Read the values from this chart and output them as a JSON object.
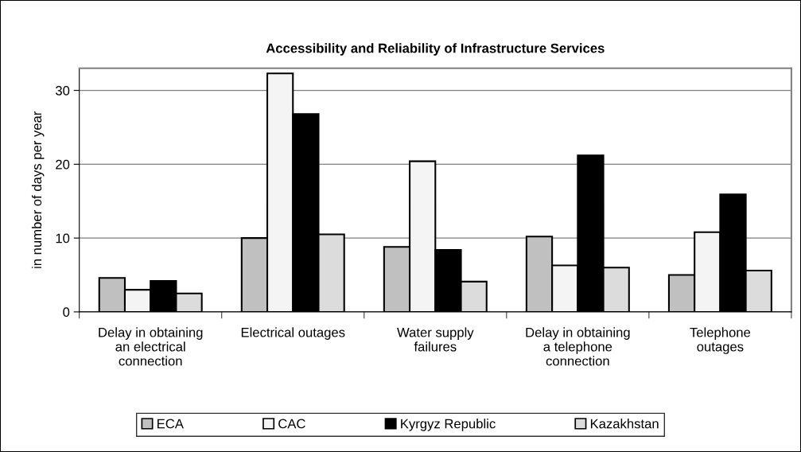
{
  "chart_data": {
    "type": "bar",
    "title": "Accessibility and Reliability of Infrastructure Services",
    "ylabel": "in number of days per year",
    "categories": [
      "Delay in obtaining\nan electrical\nconnection",
      "Electrical outages",
      "Water supply\nfailures",
      "Delay in obtaining\na telephone\nconnection",
      "Telephone\noutages"
    ],
    "series": [
      {
        "name": "ECA",
        "color": "#c0c0c0",
        "values": [
          4.6,
          10.0,
          8.8,
          10.2,
          5.0
        ]
      },
      {
        "name": "CAC",
        "color": "#f4f4f4",
        "values": [
          3.0,
          32.3,
          20.4,
          6.3,
          10.8
        ]
      },
      {
        "name": "Kyrgyz Republic",
        "color": "#000000",
        "values": [
          4.2,
          26.8,
          8.4,
          21.2,
          15.9
        ]
      },
      {
        "name": "Kazakhstan",
        "color": "#dcdcdc",
        "values": [
          2.5,
          10.5,
          4.1,
          6.0,
          5.6
        ]
      }
    ],
    "ylim": [
      0,
      33
    ],
    "yticks": [
      0,
      10,
      20,
      30
    ],
    "grid": "y",
    "legend": "bottom"
  }
}
